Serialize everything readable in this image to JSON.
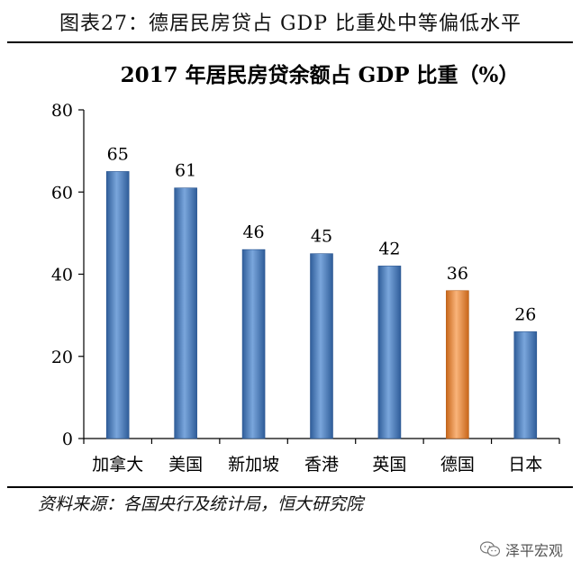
{
  "figure_caption": "图表27：德居民房贷占 GDP 比重处中等偏低水平",
  "source": "资料来源：各国央行及统计局，恒大研究院",
  "watermark": "泽平宏观",
  "colors": {
    "bar": "#4f81bd",
    "highlight": "#f79646",
    "axis": "#000000",
    "text": "#000000"
  },
  "chart_data": {
    "type": "bar",
    "title": "2017 年居民房贷余额占 GDP 比重（%）",
    "categories": [
      "加拿大",
      "美国",
      "新加坡",
      "香港",
      "英国",
      "德国",
      "日本"
    ],
    "values": [
      65,
      61,
      46,
      45,
      42,
      36,
      26
    ],
    "data_labels": [
      "65",
      "61",
      "46",
      "45",
      "42",
      "36",
      "26"
    ],
    "highlight_index": 5,
    "ylim": [
      0,
      80
    ],
    "yticks": [
      0,
      20,
      40,
      60,
      80
    ],
    "xlabel": "",
    "ylabel": "",
    "grid": false,
    "legend": "none"
  }
}
